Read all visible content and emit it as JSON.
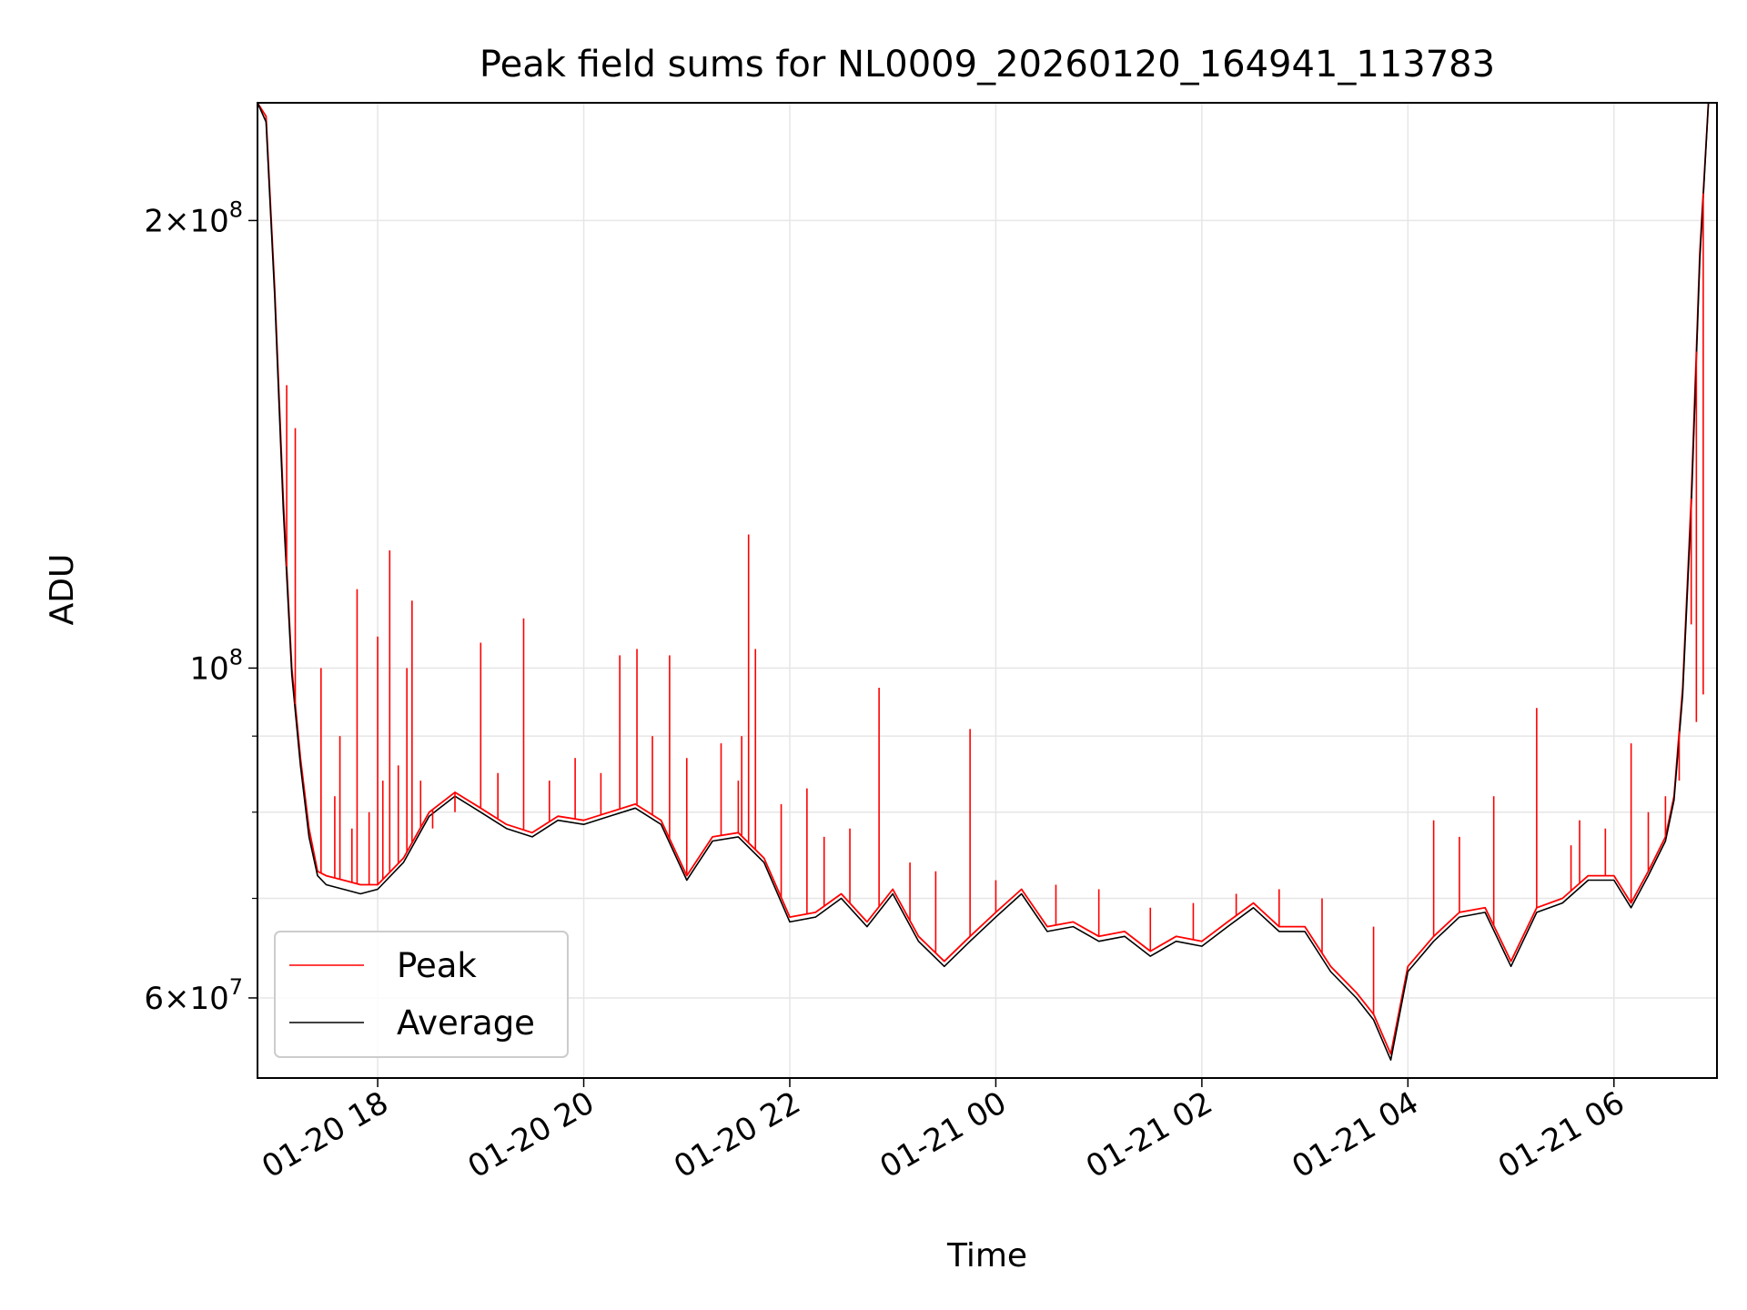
{
  "chart_data": {
    "type": "line",
    "title": "Peak field sums for NL0009_20260120_164941_113783",
    "xlabel": "Time",
    "ylabel": "ADU",
    "yscale": "log",
    "grid": true,
    "legend_position": "lower-left",
    "xlim": [
      "2026-01-20 16:50",
      "2026-01-21 07:00"
    ],
    "ylim": [
      53000000,
      240000000
    ],
    "x_ticks": [
      {
        "t": "2026-01-20 18:00",
        "label": "01-20 18"
      },
      {
        "t": "2026-01-20 20:00",
        "label": "01-20 20"
      },
      {
        "t": "2026-01-20 22:00",
        "label": "01-20 22"
      },
      {
        "t": "2026-01-21 00:00",
        "label": "01-21 00"
      },
      {
        "t": "2026-01-21 02:00",
        "label": "01-21 02"
      },
      {
        "t": "2026-01-21 04:00",
        "label": "01-21 04"
      },
      {
        "t": "2026-01-21 06:00",
        "label": "01-21 06"
      }
    ],
    "y_major_ticks": [
      {
        "value": 60000000,
        "base": "6",
        "exp": "7"
      },
      {
        "value": 100000000,
        "base": "",
        "exp": "8"
      },
      {
        "value": 200000000,
        "base": "2",
        "exp": "8"
      }
    ],
    "y_minor_ticks": [
      70000000,
      80000000,
      90000000
    ],
    "x": [
      "2026-01-20 16:50",
      "2026-01-20 16:55",
      "2026-01-20 17:00",
      "2026-01-20 17:05",
      "2026-01-20 17:10",
      "2026-01-20 17:15",
      "2026-01-20 17:20",
      "2026-01-20 17:25",
      "2026-01-20 17:30",
      "2026-01-20 17:40",
      "2026-01-20 17:50",
      "2026-01-20 18:00",
      "2026-01-20 18:15",
      "2026-01-20 18:30",
      "2026-01-20 18:45",
      "2026-01-20 19:00",
      "2026-01-20 19:15",
      "2026-01-20 19:30",
      "2026-01-20 19:45",
      "2026-01-20 20:00",
      "2026-01-20 20:15",
      "2026-01-20 20:30",
      "2026-01-20 20:45",
      "2026-01-20 21:00",
      "2026-01-20 21:15",
      "2026-01-20 21:30",
      "2026-01-20 21:45",
      "2026-01-20 22:00",
      "2026-01-20 22:15",
      "2026-01-20 22:30",
      "2026-01-20 22:45",
      "2026-01-20 23:00",
      "2026-01-20 23:15",
      "2026-01-20 23:30",
      "2026-01-20 23:45",
      "2026-01-21 00:00",
      "2026-01-21 00:15",
      "2026-01-21 00:30",
      "2026-01-21 00:45",
      "2026-01-21 01:00",
      "2026-01-21 01:15",
      "2026-01-21 01:30",
      "2026-01-21 01:45",
      "2026-01-21 02:00",
      "2026-01-21 02:15",
      "2026-01-21 02:30",
      "2026-01-21 02:45",
      "2026-01-21 03:00",
      "2026-01-21 03:15",
      "2026-01-21 03:30",
      "2026-01-21 03:40",
      "2026-01-21 03:50",
      "2026-01-21 04:00",
      "2026-01-21 04:15",
      "2026-01-21 04:30",
      "2026-01-21 04:45",
      "2026-01-21 05:00",
      "2026-01-21 05:15",
      "2026-01-21 05:30",
      "2026-01-21 05:45",
      "2026-01-21 06:00",
      "2026-01-21 06:10",
      "2026-01-21 06:20",
      "2026-01-21 06:30",
      "2026-01-21 06:35",
      "2026-01-21 06:40",
      "2026-01-21 06:45",
      "2026-01-21 06:50",
      "2026-01-21 06:55"
    ],
    "series": [
      {
        "name": "Peak",
        "color": "#ff0000",
        "values": [
          240000000,
          235000000,
          180000000,
          130000000,
          100000000,
          87000000,
          78000000,
          73000000,
          72500000,
          72000000,
          71500000,
          71500000,
          74500000,
          80000000,
          82500000,
          80500000,
          78500000,
          77500000,
          79500000,
          79000000,
          80000000,
          81000000,
          79000000,
          72500000,
          77000000,
          77500000,
          74500000,
          68000000,
          68500000,
          70500000,
          67500000,
          71000000,
          66000000,
          63500000,
          66000000,
          68500000,
          71000000,
          67000000,
          67500000,
          66000000,
          66500000,
          64500000,
          66000000,
          65500000,
          67500000,
          69500000,
          67000000,
          67000000,
          63000000,
          60500000,
          58500000,
          55000000,
          63000000,
          66000000,
          68500000,
          69000000,
          63500000,
          69000000,
          70000000,
          72500000,
          72500000,
          69500000,
          73000000,
          77000000,
          82000000,
          97000000,
          130000000,
          190000000,
          240000000
        ]
      },
      {
        "name": "Average",
        "color": "#000000",
        "values": [
          240000000,
          233000000,
          178000000,
          128000000,
          99000000,
          86000000,
          77000000,
          72500000,
          71500000,
          71000000,
          70500000,
          71000000,
          74000000,
          79500000,
          82000000,
          80000000,
          78000000,
          77000000,
          79000000,
          78500000,
          79500000,
          80500000,
          78500000,
          72000000,
          76500000,
          77000000,
          74000000,
          67500000,
          68000000,
          70000000,
          67000000,
          70500000,
          65500000,
          63000000,
          65500000,
          68000000,
          70500000,
          66500000,
          67000000,
          65500000,
          66000000,
          64000000,
          65500000,
          65000000,
          67000000,
          69000000,
          66500000,
          66500000,
          62500000,
          60000000,
          58000000,
          54500000,
          62500000,
          65500000,
          68000000,
          68500000,
          63000000,
          68500000,
          69500000,
          72000000,
          72000000,
          69000000,
          72500000,
          76500000,
          81500000,
          96000000,
          128000000,
          188000000,
          240000000
        ]
      }
    ],
    "spikes": {
      "series": "Peak",
      "points": [
        {
          "t": "2026-01-20 17:07",
          "v": 155000000
        },
        {
          "t": "2026-01-20 17:12",
          "v": 145000000
        },
        {
          "t": "2026-01-20 17:27",
          "v": 100000000
        },
        {
          "t": "2026-01-20 17:35",
          "v": 82000000
        },
        {
          "t": "2026-01-20 17:38",
          "v": 90000000
        },
        {
          "t": "2026-01-20 17:45",
          "v": 78000000
        },
        {
          "t": "2026-01-20 17:48",
          "v": 113000000
        },
        {
          "t": "2026-01-20 17:55",
          "v": 80000000
        },
        {
          "t": "2026-01-20 18:00",
          "v": 105000000
        },
        {
          "t": "2026-01-20 18:03",
          "v": 84000000
        },
        {
          "t": "2026-01-20 18:07",
          "v": 120000000
        },
        {
          "t": "2026-01-20 18:12",
          "v": 86000000
        },
        {
          "t": "2026-01-20 18:17",
          "v": 100000000
        },
        {
          "t": "2026-01-20 18:20",
          "v": 111000000
        },
        {
          "t": "2026-01-20 18:25",
          "v": 84000000
        },
        {
          "t": "2026-01-20 18:32",
          "v": 78000000
        },
        {
          "t": "2026-01-20 18:45",
          "v": 80000000
        },
        {
          "t": "2026-01-20 19:00",
          "v": 104000000
        },
        {
          "t": "2026-01-20 19:10",
          "v": 85000000
        },
        {
          "t": "2026-01-20 19:25",
          "v": 108000000
        },
        {
          "t": "2026-01-20 19:40",
          "v": 84000000
        },
        {
          "t": "2026-01-20 19:55",
          "v": 87000000
        },
        {
          "t": "2026-01-20 20:10",
          "v": 85000000
        },
        {
          "t": "2026-01-20 20:21",
          "v": 102000000
        },
        {
          "t": "2026-01-20 20:31",
          "v": 103000000
        },
        {
          "t": "2026-01-20 20:40",
          "v": 90000000
        },
        {
          "t": "2026-01-20 20:50",
          "v": 102000000
        },
        {
          "t": "2026-01-20 21:00",
          "v": 87000000
        },
        {
          "t": "2026-01-20 21:20",
          "v": 89000000
        },
        {
          "t": "2026-01-20 21:30",
          "v": 84000000
        },
        {
          "t": "2026-01-20 21:32",
          "v": 90000000
        },
        {
          "t": "2026-01-20 21:36",
          "v": 123000000
        },
        {
          "t": "2026-01-20 21:40",
          "v": 103000000
        },
        {
          "t": "2026-01-20 21:55",
          "v": 81000000
        },
        {
          "t": "2026-01-20 22:10",
          "v": 83000000
        },
        {
          "t": "2026-01-20 22:20",
          "v": 77000000
        },
        {
          "t": "2026-01-20 22:35",
          "v": 78000000
        },
        {
          "t": "2026-01-20 22:52",
          "v": 97000000
        },
        {
          "t": "2026-01-20 23:10",
          "v": 74000000
        },
        {
          "t": "2026-01-20 23:25",
          "v": 73000000
        },
        {
          "t": "2026-01-20 23:45",
          "v": 91000000
        },
        {
          "t": "2026-01-21 00:00",
          "v": 72000000
        },
        {
          "t": "2026-01-21 00:35",
          "v": 71500000
        },
        {
          "t": "2026-01-21 01:00",
          "v": 71000000
        },
        {
          "t": "2026-01-21 01:30",
          "v": 69000000
        },
        {
          "t": "2026-01-21 01:55",
          "v": 69500000
        },
        {
          "t": "2026-01-21 02:20",
          "v": 70500000
        },
        {
          "t": "2026-01-21 02:45",
          "v": 71000000
        },
        {
          "t": "2026-01-21 03:10",
          "v": 70000000
        },
        {
          "t": "2026-01-21 03:40",
          "v": 67000000
        },
        {
          "t": "2026-01-21 04:15",
          "v": 79000000
        },
        {
          "t": "2026-01-21 04:30",
          "v": 77000000
        },
        {
          "t": "2026-01-21 04:50",
          "v": 82000000
        },
        {
          "t": "2026-01-21 05:15",
          "v": 94000000
        },
        {
          "t": "2026-01-21 05:35",
          "v": 76000000
        },
        {
          "t": "2026-01-21 05:40",
          "v": 79000000
        },
        {
          "t": "2026-01-21 05:55",
          "v": 78000000
        },
        {
          "t": "2026-01-21 06:10",
          "v": 89000000
        },
        {
          "t": "2026-01-21 06:20",
          "v": 80000000
        },
        {
          "t": "2026-01-21 06:30",
          "v": 82000000
        },
        {
          "t": "2026-01-21 06:38",
          "v": 84000000
        },
        {
          "t": "2026-01-21 06:45",
          "v": 107000000
        },
        {
          "t": "2026-01-21 06:48",
          "v": 92000000
        },
        {
          "t": "2026-01-21 06:52",
          "v": 96000000
        }
      ]
    }
  },
  "legend": {
    "items": [
      {
        "label": "Peak",
        "color": "#ff0000"
      },
      {
        "label": "Average",
        "color": "#000000"
      }
    ]
  }
}
